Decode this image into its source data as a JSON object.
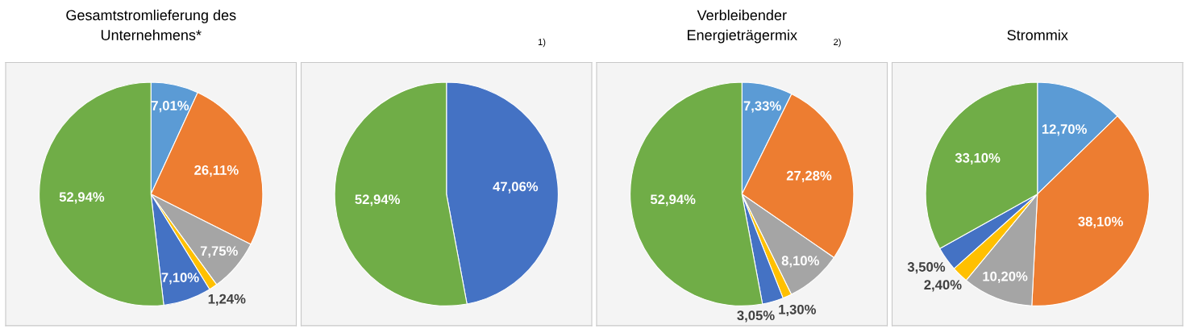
{
  "chart_data": [
    {
      "type": "pie",
      "title": "Gesamtstromlieferung des\nUnternehmens*",
      "categories": [
        null,
        null,
        null,
        null,
        null,
        null
      ],
      "values": [
        7.01,
        26.11,
        7.75,
        1.24,
        7.1,
        52.94
      ],
      "colors": [
        "#5b9bd5",
        "#ed7d31",
        "#a5a5a5",
        "#ffc000",
        "#4472c4",
        "#70ad47"
      ],
      "data_labels": true,
      "value_labels": [
        "7,01%",
        "26,11%",
        "7,75%",
        "1,24%",
        "7,10%",
        "52,94%"
      ]
    },
    {
      "type": "pie",
      "annotations": [
        "1)"
      ],
      "categories": [
        null,
        null
      ],
      "values": [
        47.06,
        52.94
      ],
      "colors": [
        "#4472c4",
        "#70ad47"
      ],
      "data_labels": true,
      "value_labels": [
        "47,06%",
        "52,94%"
      ]
    },
    {
      "type": "pie",
      "title": "Verbleibender\nEnergieträgermix",
      "annotations": [
        "2)"
      ],
      "categories": [
        null,
        null,
        null,
        null,
        null,
        null
      ],
      "values": [
        7.33,
        27.28,
        8.1,
        1.3,
        3.05,
        52.94
      ],
      "colors": [
        "#5b9bd5",
        "#ed7d31",
        "#a5a5a5",
        "#ffc000",
        "#4472c4",
        "#70ad47"
      ],
      "data_labels": true,
      "value_labels": [
        "7,33%",
        "27,28%",
        "8,10%",
        "1,30%",
        "3,05%",
        "52,94%"
      ]
    },
    {
      "type": "pie",
      "title": "Strommix",
      "categories": [
        null,
        null,
        null,
        null,
        null,
        null
      ],
      "values": [
        12.7,
        38.1,
        10.2,
        2.4,
        3.5,
        33.1
      ],
      "colors": [
        "#5b9bd5",
        "#ed7d31",
        "#a5a5a5",
        "#ffc000",
        "#4472c4",
        "#70ad47"
      ],
      "data_labels": true,
      "value_labels": [
        "12,70%",
        "38,10%",
        "10,20%",
        "2,40%",
        "3,50%",
        "33,10%"
      ]
    }
  ]
}
